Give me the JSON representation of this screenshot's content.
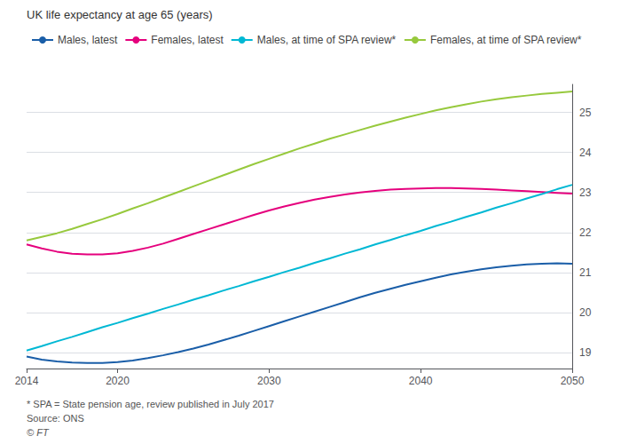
{
  "chart_data": {
    "type": "line",
    "ylabel": "UK life expectancy at age 65 (years)",
    "annotations": [
      "* SPA = State pension age, review published in July 2017",
      "Source: ONS",
      "© FT"
    ],
    "x": [
      2014,
      2015,
      2016,
      2017,
      2018,
      2019,
      2020,
      2021,
      2022,
      2023,
      2024,
      2025,
      2026,
      2027,
      2028,
      2029,
      2030,
      2031,
      2032,
      2033,
      2034,
      2035,
      2036,
      2037,
      2038,
      2039,
      2040,
      2041,
      2042,
      2043,
      2044,
      2045,
      2046,
      2047,
      2048,
      2049,
      2050
    ],
    "series": [
      {
        "name": "Males, latest",
        "color": "#1a5ea8",
        "values": [
          18.9,
          18.82,
          18.78,
          18.75,
          18.74,
          18.74,
          18.76,
          18.8,
          18.86,
          18.93,
          19.01,
          19.1,
          19.2,
          19.31,
          19.42,
          19.54,
          19.66,
          19.78,
          19.9,
          20.02,
          20.14,
          20.26,
          20.38,
          20.49,
          20.59,
          20.69,
          20.78,
          20.87,
          20.95,
          21.02,
          21.08,
          21.13,
          21.17,
          21.2,
          21.22,
          21.23,
          21.22
        ]
      },
      {
        "name": "Females, latest",
        "color": "#e5007d",
        "values": [
          21.7,
          21.6,
          21.52,
          21.47,
          21.45,
          21.45,
          21.48,
          21.54,
          21.62,
          21.72,
          21.84,
          21.96,
          22.08,
          22.2,
          22.32,
          22.44,
          22.55,
          22.65,
          22.74,
          22.82,
          22.89,
          22.95,
          23.0,
          23.04,
          23.07,
          23.09,
          23.1,
          23.11,
          23.11,
          23.1,
          23.09,
          23.07,
          23.05,
          23.03,
          23.01,
          22.99,
          22.97
        ]
      },
      {
        "name": "Males, at time of SPA review*",
        "color": "#00b8d4",
        "values": [
          19.05,
          19.16,
          19.28,
          19.39,
          19.51,
          19.63,
          19.74,
          19.86,
          19.97,
          20.09,
          20.2,
          20.32,
          20.43,
          20.55,
          20.66,
          20.78,
          20.89,
          21.01,
          21.12,
          21.24,
          21.35,
          21.47,
          21.58,
          21.7,
          21.81,
          21.93,
          22.04,
          22.16,
          22.27,
          22.39,
          22.5,
          22.62,
          22.73,
          22.85,
          22.96,
          23.08,
          23.19
        ]
      },
      {
        "name": "Females, at time of SPA review*",
        "color": "#97c93d",
        "values": [
          21.8,
          21.89,
          21.98,
          22.09,
          22.21,
          22.33,
          22.46,
          22.6,
          22.73,
          22.87,
          23.01,
          23.15,
          23.29,
          23.43,
          23.57,
          23.71,
          23.84,
          23.97,
          24.1,
          24.22,
          24.34,
          24.45,
          24.56,
          24.67,
          24.77,
          24.87,
          24.96,
          25.05,
          25.13,
          25.2,
          25.27,
          25.33,
          25.38,
          25.42,
          25.46,
          25.49,
          25.52
        ]
      }
    ],
    "xlim": [
      2014,
      2050
    ],
    "xticks": [
      2014,
      2020,
      2030,
      2040,
      2050
    ],
    "ylim": [
      18.6,
      25.7
    ],
    "yticks": [
      19,
      20,
      21,
      22,
      23,
      24,
      25
    ],
    "grid": true,
    "legend": "top left"
  }
}
